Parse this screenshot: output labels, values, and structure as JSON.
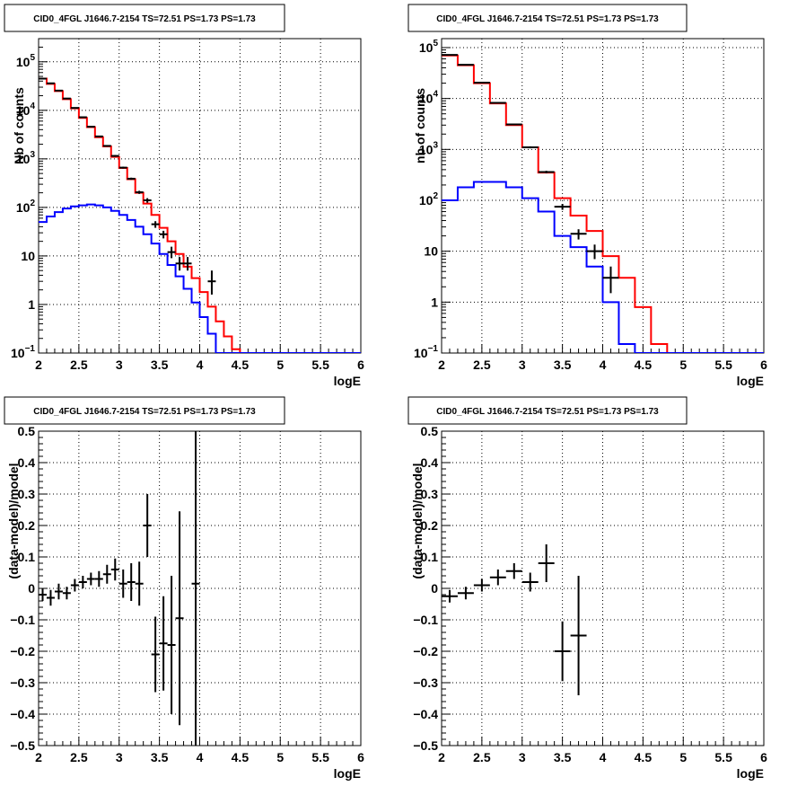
{
  "chart_data": [
    {
      "type": "line",
      "title": "CID0_4FGL J1646.7-2154 TS=72.51 PS=1.73 PS=1.73",
      "xlabel": "logE",
      "ylabel": "Nb of counts",
      "xlim": [
        2,
        6
      ],
      "ylim": [
        0.1,
        300000
      ],
      "yscale": "log",
      "grid": true,
      "xticks": [
        "2",
        "2.5",
        "3",
        "3.5",
        "4",
        "4.5",
        "5",
        "5.5",
        "6"
      ],
      "yticks": [
        {
          "value": 0.1,
          "label": "10",
          "exp": "−1"
        },
        {
          "value": 1,
          "label": "1",
          "exp": ""
        },
        {
          "value": 10,
          "label": "10",
          "exp": ""
        },
        {
          "value": 100,
          "label": "10",
          "exp": "2"
        },
        {
          "value": 1000,
          "label": "10",
          "exp": "3"
        },
        {
          "value": 10000,
          "label": "10",
          "exp": "4"
        },
        {
          "value": 100000,
          "label": "10",
          "exp": "5"
        }
      ],
      "bin_edges": [
        2.0,
        2.1,
        2.2,
        2.3,
        2.4,
        2.5,
        2.6,
        2.7,
        2.8,
        2.9,
        3.0,
        3.1,
        3.2,
        3.3,
        3.4,
        3.5,
        3.6,
        3.7,
        3.8,
        3.9,
        4.0,
        4.1,
        4.2,
        4.3,
        4.4,
        4.5,
        4.6,
        4.7,
        4.8,
        4.9,
        5.0,
        5.1,
        5.2,
        5.3,
        5.4,
        5.5,
        5.6,
        5.7,
        5.8,
        5.9,
        6.0
      ],
      "series": [
        {
          "color": "#ff0000",
          "style": "step",
          "values": [
            45000,
            35000,
            25000,
            17000,
            11000,
            7000,
            4500,
            2800,
            1800,
            1100,
            650,
            380,
            200,
            120,
            70,
            38,
            20,
            11,
            6,
            3.5,
            1.8,
            0.9,
            0.45,
            0.22,
            0.12,
            0.1,
            0.1,
            0.1,
            0.1,
            0.1,
            0.1,
            0.1,
            0.1,
            0.1,
            0.1,
            0.1,
            0.1,
            0.1,
            0.1,
            0.1
          ]
        },
        {
          "color": "#0000ff",
          "style": "step",
          "values": [
            50,
            65,
            80,
            95,
            105,
            110,
            115,
            110,
            100,
            85,
            70,
            55,
            40,
            28,
            18,
            11,
            6.5,
            3.8,
            2.1,
            1.1,
            0.55,
            0.25,
            0.1,
            0.1,
            0.1,
            0.1,
            0.1,
            0.1,
            0.1,
            0.1,
            0.1,
            0.1,
            0.1,
            0.1,
            0.1,
            0.1,
            0.1,
            0.1,
            0.1,
            0.1
          ]
        },
        {
          "color": "#000000",
          "style": "errorbar",
          "points": [
            {
              "x": 2.05,
              "y": 45000,
              "ylo": 44500,
              "yhi": 45500
            },
            {
              "x": 2.15,
              "y": 36000,
              "ylo": 35600,
              "yhi": 36400
            },
            {
              "x": 2.25,
              "y": 25500,
              "ylo": 25200,
              "yhi": 25800
            },
            {
              "x": 2.35,
              "y": 17500,
              "ylo": 17200,
              "yhi": 17800
            },
            {
              "x": 2.45,
              "y": 11200,
              "ylo": 11000,
              "yhi": 11400
            },
            {
              "x": 2.55,
              "y": 7200,
              "ylo": 7050,
              "yhi": 7350
            },
            {
              "x": 2.65,
              "y": 4600,
              "ylo": 4500,
              "yhi": 4700
            },
            {
              "x": 2.75,
              "y": 2900,
              "ylo": 2820,
              "yhi": 2980
            },
            {
              "x": 2.85,
              "y": 1850,
              "ylo": 1790,
              "yhi": 1910
            },
            {
              "x": 2.95,
              "y": 1150,
              "ylo": 1100,
              "yhi": 1200
            },
            {
              "x": 3.05,
              "y": 660,
              "ylo": 630,
              "yhi": 690
            },
            {
              "x": 3.15,
              "y": 390,
              "ylo": 370,
              "yhi": 410
            },
            {
              "x": 3.25,
              "y": 205,
              "ylo": 190,
              "yhi": 220
            },
            {
              "x": 3.35,
              "y": 140,
              "ylo": 125,
              "yhi": 155
            },
            {
              "x": 3.45,
              "y": 45,
              "ylo": 38,
              "yhi": 52
            },
            {
              "x": 3.55,
              "y": 28,
              "ylo": 23,
              "yhi": 33
            },
            {
              "x": 3.65,
              "y": 12,
              "ylo": 9,
              "yhi": 15.5
            },
            {
              "x": 3.75,
              "y": 7,
              "ylo": 5,
              "yhi": 9.5
            },
            {
              "x": 3.85,
              "y": 7,
              "ylo": 5,
              "yhi": 9.5
            },
            {
              "x": 4.15,
              "y": 3,
              "ylo": 1.6,
              "yhi": 5
            }
          ]
        }
      ]
    },
    {
      "type": "line",
      "title": "CID0_4FGL J1646.7-2154 TS=72.51 PS=1.73 PS=1.73",
      "xlabel": "logE",
      "ylabel": "nb of counts",
      "xlim": [
        2,
        6
      ],
      "ylim": [
        0.1,
        150000
      ],
      "yscale": "log",
      "grid": true,
      "xticks": [
        "2",
        "2.5",
        "3",
        "3.5",
        "4",
        "4.5",
        "5",
        "5.5",
        "6"
      ],
      "yticks": [
        {
          "value": 0.1,
          "label": "10",
          "exp": "−1"
        },
        {
          "value": 1,
          "label": "1",
          "exp": ""
        },
        {
          "value": 10,
          "label": "10",
          "exp": ""
        },
        {
          "value": 100,
          "label": "10",
          "exp": "2"
        },
        {
          "value": 1000,
          "label": "10",
          "exp": "3"
        },
        {
          "value": 10000,
          "label": "10",
          "exp": "4"
        },
        {
          "value": 100000,
          "label": "10",
          "exp": "5"
        }
      ],
      "bin_edges": [
        2.0,
        2.2,
        2.4,
        2.6,
        2.8,
        3.0,
        3.2,
        3.4,
        3.6,
        3.8,
        4.0,
        4.2,
        4.4,
        4.6,
        4.8,
        5.0,
        5.2,
        5.4,
        5.6,
        5.8,
        6.0
      ],
      "series": [
        {
          "color": "#ff0000",
          "style": "step",
          "values": [
            70000,
            45000,
            20000,
            8000,
            3000,
            1100,
            350,
            110,
            50,
            25,
            8,
            3,
            0.8,
            0.15,
            0.1,
            0.1,
            0.1,
            0.1,
            0.1,
            0.1
          ]
        },
        {
          "color": "#0000ff",
          "style": "step",
          "values": [
            100,
            180,
            230,
            230,
            180,
            110,
            60,
            20,
            12,
            5,
            1,
            0.15,
            0.1,
            0.1,
            0.1,
            0.1,
            0.1,
            0.1,
            0.1,
            0.1
          ]
        },
        {
          "color": "#000000",
          "style": "errorbar",
          "points": [
            {
              "x": 2.1,
              "y": 72000,
              "ylo": 71500,
              "yhi": 72500
            },
            {
              "x": 2.3,
              "y": 46000,
              "ylo": 45600,
              "yhi": 46400
            },
            {
              "x": 2.5,
              "y": 20500,
              "ylo": 20200,
              "yhi": 20800
            },
            {
              "x": 2.7,
              "y": 8200,
              "ylo": 8000,
              "yhi": 8400
            },
            {
              "x": 2.9,
              "y": 3100,
              "ylo": 3000,
              "yhi": 3200
            },
            {
              "x": 3.1,
              "y": 1100,
              "ylo": 1050,
              "yhi": 1150
            },
            {
              "x": 3.3,
              "y": 360,
              "ylo": 340,
              "yhi": 380
            },
            {
              "x": 3.5,
              "y": 75,
              "ylo": 65,
              "yhi": 85
            },
            {
              "x": 3.7,
              "y": 22,
              "ylo": 17,
              "yhi": 27
            },
            {
              "x": 3.9,
              "y": 10,
              "ylo": 7,
              "yhi": 13.5
            },
            {
              "x": 4.1,
              "y": 3,
              "ylo": 1.5,
              "yhi": 5
            }
          ]
        }
      ]
    },
    {
      "type": "scatter",
      "title": "CID0_4FGL J1646.7-2154 TS=72.51 PS=1.73 PS=1.73",
      "xlabel": "logE",
      "ylabel": "(data-model)/model",
      "xlim": [
        2,
        6
      ],
      "ylim": [
        -0.5,
        0.5
      ],
      "grid": true,
      "xticks": [
        "2",
        "2.5",
        "3",
        "3.5",
        "4",
        "4.5",
        "5",
        "5.5",
        "6"
      ],
      "yticks": [
        "−0.5",
        "−0.4",
        "−0.3",
        "−0.2",
        "−0.1",
        "0",
        "0.1",
        "0.2",
        "0.3",
        "0.4",
        "0.5"
      ],
      "points": [
        {
          "x": 2.05,
          "y": -0.02,
          "err": 0.02
        },
        {
          "x": 2.15,
          "y": -0.03,
          "err": 0.025
        },
        {
          "x": 2.25,
          "y": -0.01,
          "err": 0.025
        },
        {
          "x": 2.35,
          "y": -0.015,
          "err": 0.02
        },
        {
          "x": 2.45,
          "y": 0.01,
          "err": 0.02
        },
        {
          "x": 2.55,
          "y": 0.02,
          "err": 0.02
        },
        {
          "x": 2.65,
          "y": 0.03,
          "err": 0.02
        },
        {
          "x": 2.75,
          "y": 0.03,
          "err": 0.025
        },
        {
          "x": 2.85,
          "y": 0.045,
          "err": 0.03
        },
        {
          "x": 2.95,
          "y": 0.06,
          "err": 0.035
        },
        {
          "x": 3.05,
          "y": 0.015,
          "err": 0.045
        },
        {
          "x": 3.15,
          "y": 0.02,
          "err": 0.06
        },
        {
          "x": 3.25,
          "y": 0.015,
          "err": 0.07
        },
        {
          "x": 3.35,
          "y": 0.2,
          "err": 0.1
        },
        {
          "x": 3.45,
          "y": -0.21,
          "err": 0.12
        },
        {
          "x": 3.55,
          "y": -0.175,
          "err": 0.15
        },
        {
          "x": 3.65,
          "y": -0.18,
          "err": 0.22
        },
        {
          "x": 3.75,
          "y": -0.095,
          "err": 0.34
        },
        {
          "x": 3.95,
          "y": 0.015,
          "err": 0.6
        }
      ]
    },
    {
      "type": "scatter",
      "title": "CID0_4FGL J1646.7-2154 TS=72.51 PS=1.73 PS=1.73",
      "xlabel": "logE",
      "ylabel": "(data-model)/model",
      "xlim": [
        2,
        6
      ],
      "ylim": [
        -0.5,
        0.5
      ],
      "grid": true,
      "xticks": [
        "2",
        "2.5",
        "3",
        "3.5",
        "4",
        "4.5",
        "5",
        "5.5",
        "6"
      ],
      "yticks": [
        "−0.5",
        "−0.4",
        "−0.3",
        "−0.2",
        "−0.1",
        "0",
        "0.1",
        "0.2",
        "0.3",
        "0.4",
        "0.5"
      ],
      "points": [
        {
          "x": 2.1,
          "y": -0.025,
          "err": 0.02
        },
        {
          "x": 2.3,
          "y": -0.015,
          "err": 0.02
        },
        {
          "x": 2.5,
          "y": 0.01,
          "err": 0.02
        },
        {
          "x": 2.7,
          "y": 0.035,
          "err": 0.025
        },
        {
          "x": 2.9,
          "y": 0.055,
          "err": 0.025
        },
        {
          "x": 3.1,
          "y": 0.02,
          "err": 0.03
        },
        {
          "x": 3.3,
          "y": 0.08,
          "err": 0.06
        },
        {
          "x": 3.5,
          "y": -0.2,
          "err": 0.095
        },
        {
          "x": 3.7,
          "y": -0.15,
          "err": 0.19
        }
      ]
    }
  ]
}
